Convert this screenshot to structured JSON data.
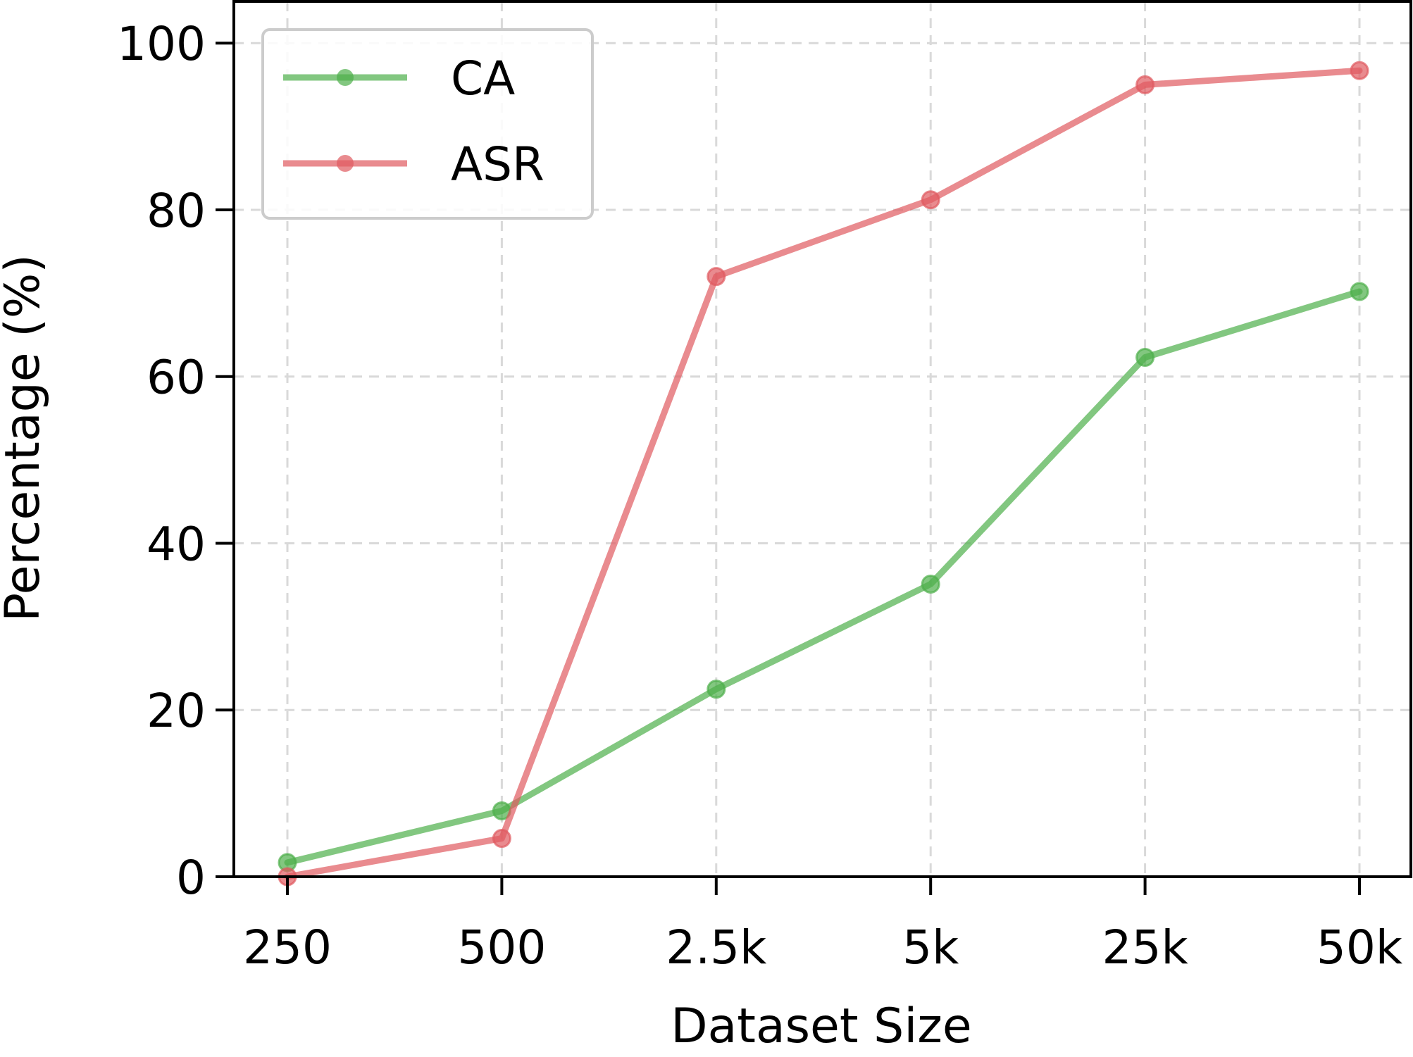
{
  "chart_data": {
    "type": "line",
    "xlabel": "Dataset Size",
    "ylabel": "Percentage (%)",
    "categories": [
      "250",
      "500",
      "2.5k",
      "5k",
      "25k",
      "50k"
    ],
    "ylim": [
      0,
      105
    ],
    "yticks": [
      0,
      20,
      40,
      60,
      80,
      100
    ],
    "grid": true,
    "grid_style": "dashed",
    "legend_position": "top-left",
    "series": [
      {
        "name": "CA",
        "color": "#4daf4a",
        "values": [
          1.7,
          7.9,
          22.5,
          35.1,
          62.3,
          70.2
        ]
      },
      {
        "name": "ASR",
        "color": "#e05a5f",
        "values": [
          0.0,
          4.6,
          72.0,
          81.2,
          95.0,
          96.7
        ]
      }
    ]
  }
}
